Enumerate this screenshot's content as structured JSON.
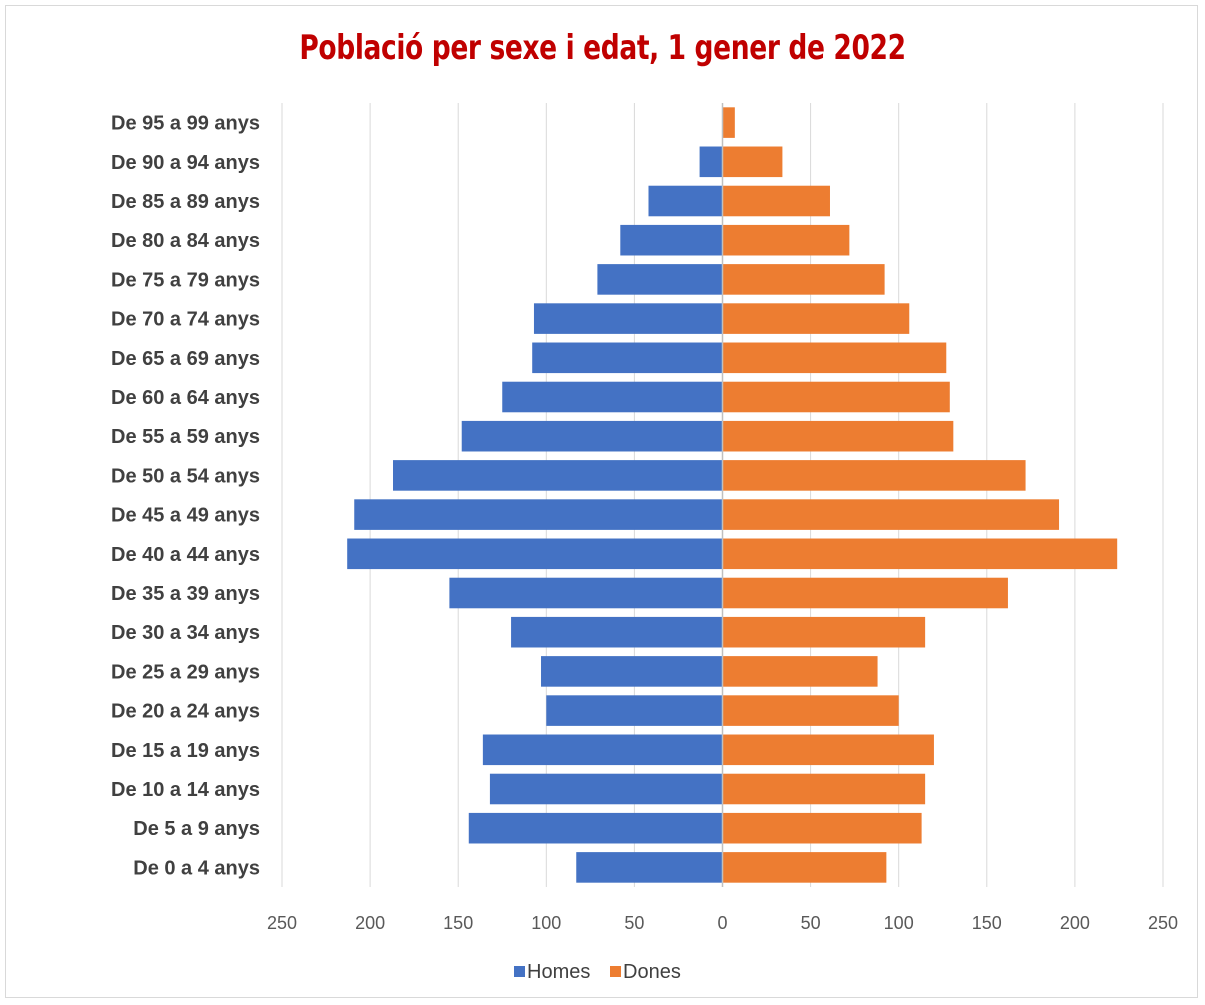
{
  "chart_data": {
    "type": "bar",
    "orientation": "horizontal",
    "stacked_diverging": true,
    "title": "Població per sexe i edat, 1 gener de 2022",
    "categories": [
      "De 0 a 4 anys",
      "De 5 a 9 anys",
      "De 10 a 14 anys",
      "De 15 a 19 anys",
      "De 20 a 24 anys",
      "De 25 a 29 anys",
      "De 30 a 34 anys",
      "De 35 a 39 anys",
      "De 40 a 44 anys",
      "De 45 a 49 anys",
      "De 50 a 54 anys",
      "De 55 a 59 anys",
      "De 60 a 64 anys",
      "De 65 a 69 anys",
      "De 70 a 74 anys",
      "De 75 a 79 anys",
      "De 80 a 84 anys",
      "De 85 a 89 anys",
      "De 90 a 94 anys",
      "De 95 a 99 anys"
    ],
    "series": [
      {
        "name": "Homes",
        "color": "#4472c4",
        "side": "left",
        "values": [
          83,
          144,
          132,
          136,
          100,
          103,
          120,
          155,
          213,
          209,
          187,
          148,
          125,
          108,
          107,
          71,
          58,
          42,
          13,
          0
        ]
      },
      {
        "name": "Dones",
        "color": "#ed7d31",
        "side": "right",
        "values": [
          93,
          113,
          115,
          120,
          100,
          88,
          115,
          162,
          224,
          191,
          172,
          131,
          129,
          127,
          106,
          92,
          72,
          61,
          34,
          7
        ]
      }
    ],
    "xlim": [
      -250,
      250
    ],
    "x_ticks": [
      "250",
      "200",
      "150",
      "100",
      "50",
      "0",
      "50",
      "100",
      "150",
      "200",
      "250"
    ],
    "grid": true,
    "legend": "bottom"
  }
}
